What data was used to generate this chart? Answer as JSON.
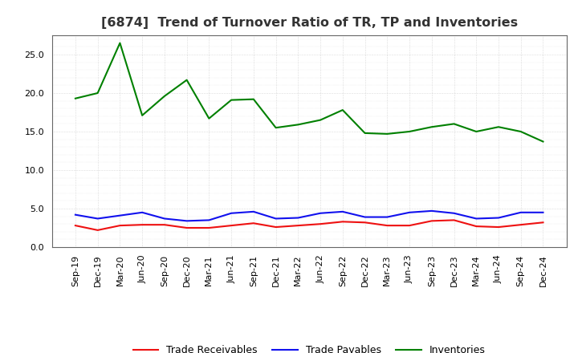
{
  "title": "[6874]  Trend of Turnover Ratio of TR, TP and Inventories",
  "x_labels": [
    "Sep-19",
    "Dec-19",
    "Mar-20",
    "Jun-20",
    "Sep-20",
    "Dec-20",
    "Mar-21",
    "Jun-21",
    "Sep-21",
    "Dec-21",
    "Mar-22",
    "Jun-22",
    "Sep-22",
    "Dec-22",
    "Mar-23",
    "Jun-23",
    "Sep-23",
    "Dec-23",
    "Mar-24",
    "Jun-24",
    "Sep-24",
    "Dec-24"
  ],
  "trade_receivables": [
    2.8,
    2.2,
    2.8,
    2.9,
    2.9,
    2.5,
    2.5,
    2.8,
    3.1,
    2.6,
    2.8,
    3.0,
    3.3,
    3.2,
    2.8,
    2.8,
    3.4,
    3.5,
    2.7,
    2.6,
    2.9,
    3.2
  ],
  "trade_payables": [
    4.2,
    3.7,
    4.1,
    4.5,
    3.7,
    3.4,
    3.5,
    4.4,
    4.6,
    3.7,
    3.8,
    4.4,
    4.6,
    3.9,
    3.9,
    4.5,
    4.7,
    4.4,
    3.7,
    3.8,
    4.5,
    4.5
  ],
  "inventories": [
    19.3,
    20.0,
    26.5,
    17.1,
    19.6,
    21.7,
    16.7,
    19.1,
    19.2,
    15.5,
    15.9,
    16.5,
    17.8,
    14.8,
    14.7,
    15.0,
    15.6,
    16.0,
    15.0,
    15.6,
    15.0,
    13.7
  ],
  "ylim": [
    0.0,
    27.5
  ],
  "yticks": [
    0.0,
    5.0,
    10.0,
    15.0,
    20.0,
    25.0
  ],
  "color_tr": "#EE1111",
  "color_tp": "#1111EE",
  "color_inv": "#008000",
  "legend_labels": [
    "Trade Receivables",
    "Trade Payables",
    "Inventories"
  ],
  "background_color": "#FFFFFF",
  "plot_bg_color": "#FFFFFF",
  "grid_color": "#AAAAAA",
  "title_fontsize": 11.5,
  "legend_fontsize": 9,
  "tick_fontsize": 8
}
